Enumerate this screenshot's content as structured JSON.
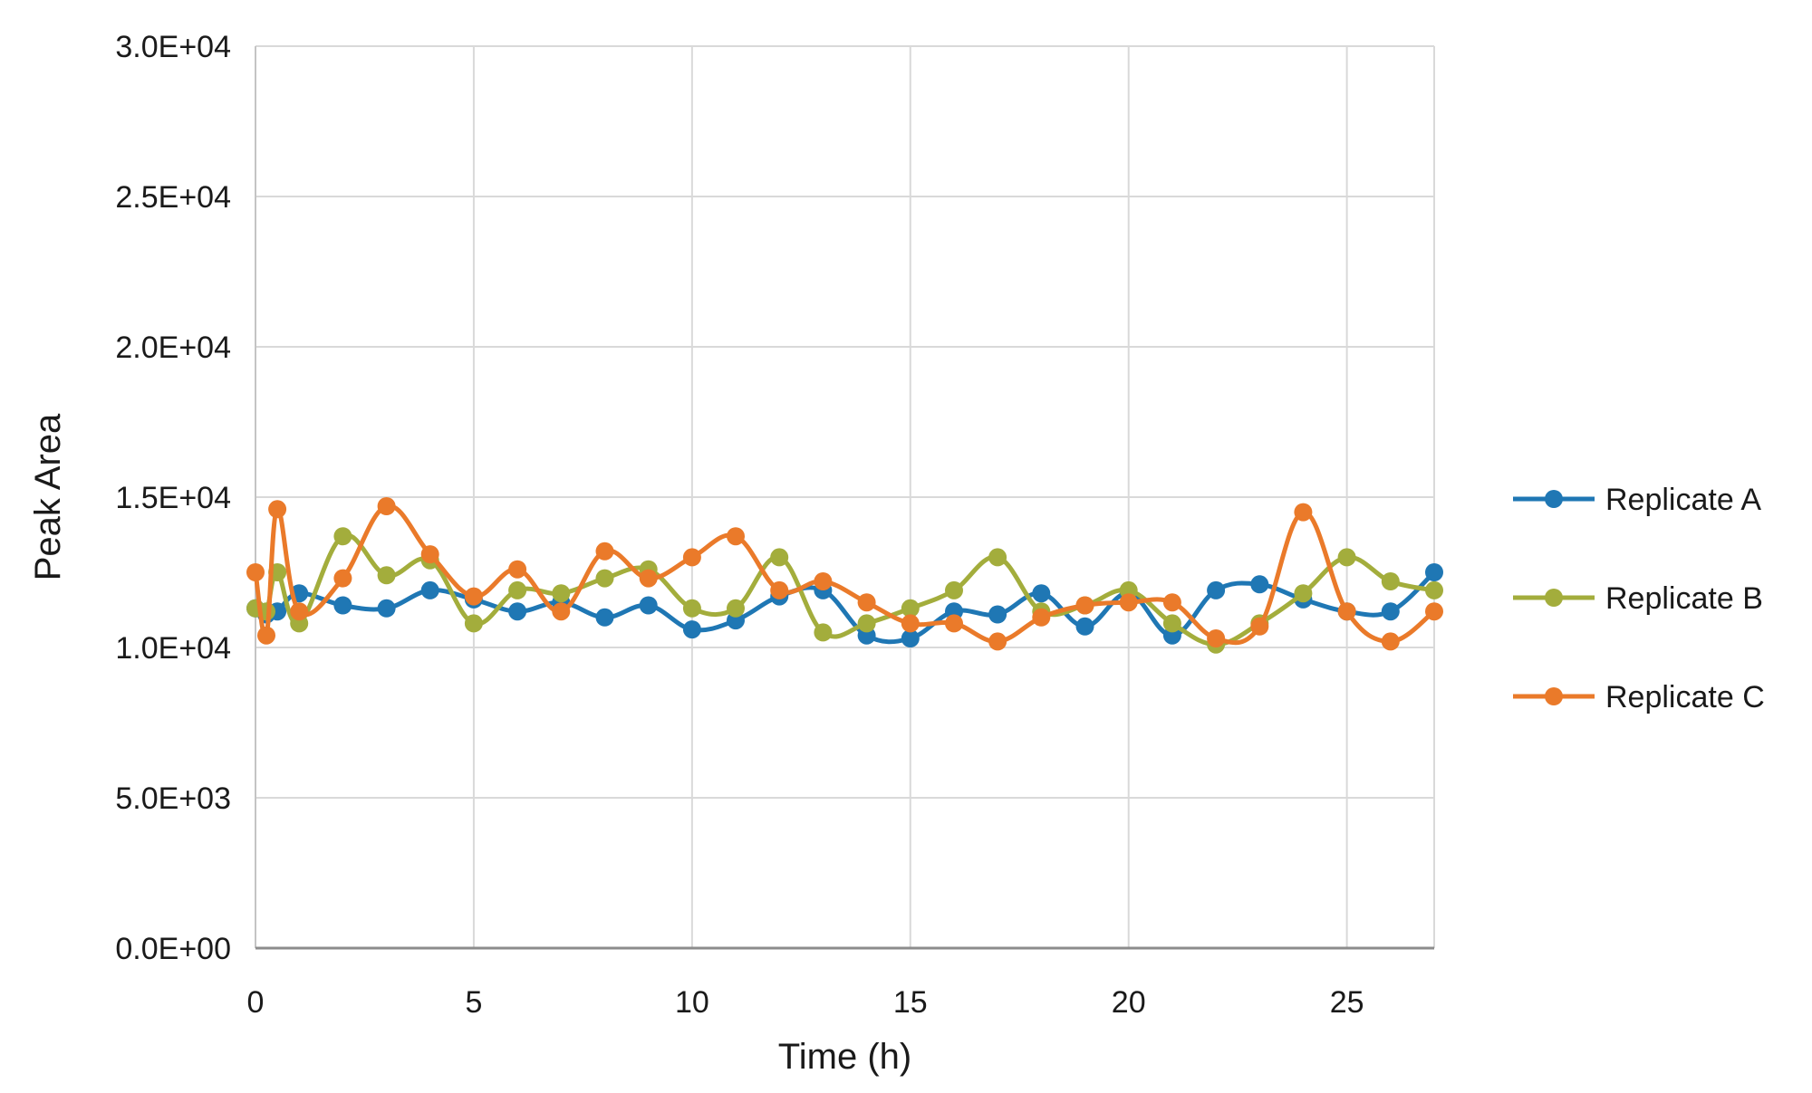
{
  "chart_data": {
    "type": "line",
    "title": "",
    "xlabel": "Time (h)",
    "ylabel": "Peak Area",
    "xlim": [
      0,
      27
    ],
    "ylim": [
      0,
      30000
    ],
    "x_ticks": [
      0,
      5,
      10,
      15,
      20,
      25
    ],
    "x_tick_labels": [
      "0",
      "5",
      "10",
      "15",
      "20",
      "25"
    ],
    "y_ticks": [
      0,
      5000,
      10000,
      15000,
      20000,
      25000,
      30000
    ],
    "y_tick_labels": [
      "0.0E+00",
      "5.0E+03",
      "1.0E+04",
      "1.5E+04",
      "2.0E+04",
      "2.5E+04",
      "3.0E+04"
    ],
    "grid": true,
    "legend_position": "right",
    "x": [
      0,
      0.25,
      0.5,
      1,
      2,
      3,
      4,
      5,
      6,
      7,
      8,
      9,
      10,
      11,
      12,
      13,
      14,
      15,
      16,
      17,
      18,
      19,
      20,
      21,
      22,
      23,
      24,
      25,
      26,
      27
    ],
    "series": [
      {
        "name": "Replicate A",
        "color": "#1f77b4",
        "values": [
          11300,
          11100,
          11200,
          11800,
          11400,
          11300,
          11900,
          11600,
          11200,
          11500,
          11000,
          11400,
          10600,
          10900,
          11700,
          11900,
          10400,
          10300,
          11200,
          11100,
          11800,
          10700,
          11800,
          10400,
          11900,
          12100,
          11600,
          11200,
          11200,
          12500
        ]
      },
      {
        "name": "Replicate B",
        "color": "#a3ad3c",
        "values": [
          11300,
          11200,
          12500,
          10800,
          13700,
          12400,
          12900,
          10800,
          11900,
          11800,
          12300,
          12600,
          11300,
          11300,
          13000,
          10500,
          10800,
          11300,
          11900,
          13000,
          11200,
          11400,
          11900,
          10800,
          10100,
          10800,
          11800,
          13000,
          12200,
          11900
        ]
      },
      {
        "name": "Replicate C",
        "color": "#ea7a2a",
        "values": [
          12500,
          10400,
          14600,
          11200,
          12300,
          14700,
          13100,
          11700,
          12600,
          11200,
          13200,
          12300,
          13000,
          13700,
          11900,
          12200,
          11500,
          10800,
          10800,
          10200,
          11000,
          11400,
          11500,
          11500,
          10300,
          10700,
          14500,
          11200,
          10200,
          11200
        ]
      }
    ]
  }
}
